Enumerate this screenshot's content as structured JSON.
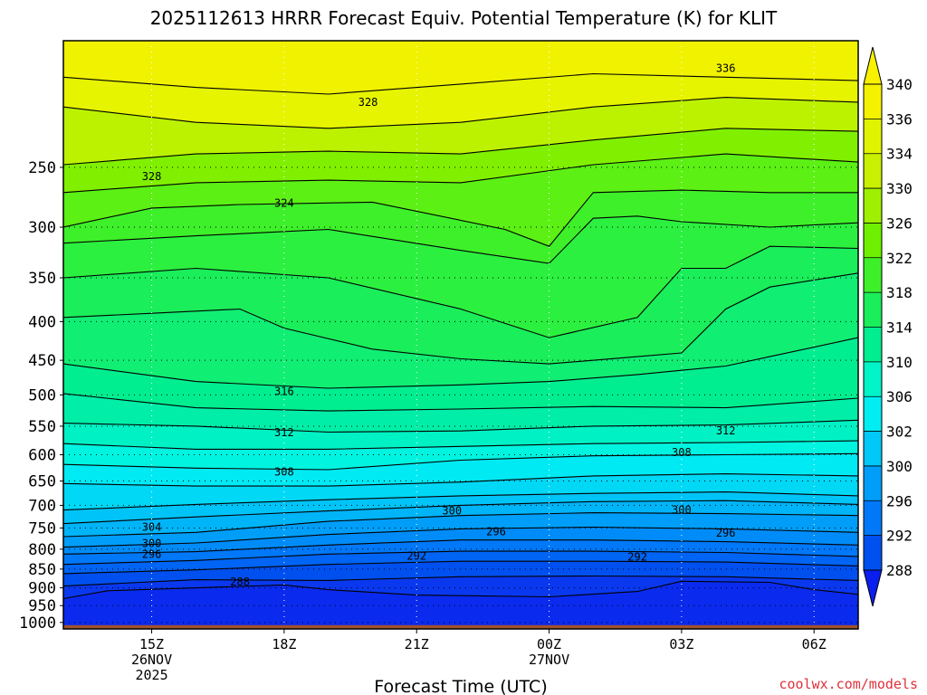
{
  "chart_data": {
    "type": "heatmap",
    "title": "2025112613 HRRR Forecast Equiv. Potential Temperature (K) for KLIT",
    "xlabel": "Forecast Time (UTC)",
    "ylabel": "",
    "credit": "coolwx.com/models",
    "y_axis": {
      "scale": "log",
      "inverted": true,
      "ylim": [
        1020,
        170
      ],
      "ticks": [
        250,
        300,
        350,
        400,
        450,
        500,
        550,
        600,
        650,
        700,
        750,
        800,
        850,
        900,
        950,
        1000
      ],
      "tick_labels": [
        "250",
        "300",
        "350",
        "400",
        "450",
        "500",
        "550",
        "600",
        "650",
        "700",
        "750",
        "800",
        "850",
        "900",
        "950",
        "1000"
      ]
    },
    "x_axis": {
      "xlim": [
        13,
        31
      ],
      "ticks": [
        {
          "hour": 15,
          "lines": [
            "15Z",
            "26NOV",
            "2025"
          ]
        },
        {
          "hour": 18,
          "lines": [
            "18Z"
          ]
        },
        {
          "hour": 21,
          "lines": [
            "21Z"
          ]
        },
        {
          "hour": 24,
          "lines": [
            "00Z",
            "27NOV"
          ]
        },
        {
          "hour": 27,
          "lines": [
            "03Z"
          ]
        },
        {
          "hour": 30,
          "lines": [
            "06Z"
          ]
        }
      ]
    },
    "grid": true,
    "colorbar": {
      "placement": "right",
      "labels": [
        "340",
        "336",
        "334",
        "330",
        "326",
        "322",
        "318",
        "314",
        "310",
        "306",
        "302",
        "300",
        "296",
        "292",
        "288"
      ],
      "colors": [
        "#f5f200",
        "#e0f400",
        "#c8f000",
        "#9ef000",
        "#6ef000",
        "#3ef02a",
        "#1aee5a",
        "#00ee90",
        "#00f4c8",
        "#00eef2",
        "#00c8f8",
        "#009ef8",
        "#0078f8",
        "#0050f0",
        "#0a2aee"
      ],
      "extend_top_color": "#f8f200",
      "extend_bottom_color": "#0a1ef0"
    },
    "contour_labels": [
      {
        "text": "336",
        "hour": 28.0,
        "p": 185
      },
      {
        "text": "328",
        "hour": 19.9,
        "p": 205
      },
      {
        "text": "328",
        "hour": 15.0,
        "p": 257
      },
      {
        "text": "324",
        "hour": 18.0,
        "p": 279
      },
      {
        "text": "316",
        "hour": 18.0,
        "p": 495
      },
      {
        "text": "312",
        "hour": 18.0,
        "p": 561
      },
      {
        "text": "312",
        "hour": 28.0,
        "p": 558
      },
      {
        "text": "308",
        "hour": 27.0,
        "p": 596
      },
      {
        "text": "308",
        "hour": 18.0,
        "p": 632
      },
      {
        "text": "304",
        "hour": 15.0,
        "p": 748
      },
      {
        "text": "300",
        "hour": 15.0,
        "p": 786
      },
      {
        "text": "296",
        "hour": 15.0,
        "p": 812
      },
      {
        "text": "300",
        "hour": 21.8,
        "p": 712
      },
      {
        "text": "300",
        "hour": 27.0,
        "p": 710
      },
      {
        "text": "296",
        "hour": 22.8,
        "p": 758
      },
      {
        "text": "296",
        "hour": 28.0,
        "p": 762
      },
      {
        "text": "292",
        "hour": 21.0,
        "p": 817
      },
      {
        "text": "292",
        "hour": 26.0,
        "p": 819
      },
      {
        "text": "288",
        "hour": 17.0,
        "p": 884
      }
    ],
    "bands": [
      {
        "value": 336,
        "levels": [
          [
            13,
            190
          ],
          [
            16,
            196
          ],
          [
            19,
            200
          ],
          [
            22,
            194
          ],
          [
            25,
            188
          ],
          [
            28,
            190
          ],
          [
            31,
            192
          ]
        ]
      },
      {
        "value": 332,
        "levels": [
          [
            13,
            208
          ],
          [
            16,
            218
          ],
          [
            19,
            222
          ],
          [
            22,
            218
          ],
          [
            25,
            208
          ],
          [
            28,
            202
          ],
          [
            31,
            205
          ]
        ]
      },
      {
        "value": 328,
        "levels": [
          [
            13,
            248
          ],
          [
            16,
            240
          ],
          [
            19,
            238
          ],
          [
            22,
            240
          ],
          [
            25,
            230
          ],
          [
            28,
            222
          ],
          [
            31,
            224
          ]
        ]
      },
      {
        "value": 326,
        "levels": [
          [
            13,
            270
          ],
          [
            16,
            262
          ],
          [
            19,
            260
          ],
          [
            22,
            262
          ],
          [
            25,
            248
          ],
          [
            28,
            240
          ],
          [
            31,
            246
          ]
        ]
      },
      {
        "value": 324,
        "levels": [
          [
            13,
            300
          ],
          [
            15,
            283
          ],
          [
            17,
            280
          ],
          [
            20,
            278
          ],
          [
            23,
            302
          ],
          [
            24,
            318
          ],
          [
            25,
            270
          ],
          [
            27,
            268
          ],
          [
            29,
            270
          ],
          [
            31,
            270
          ]
        ]
      },
      {
        "value": 322,
        "levels": [
          [
            13,
            315
          ],
          [
            16,
            308
          ],
          [
            19,
            302
          ],
          [
            22,
            322
          ],
          [
            24,
            335
          ],
          [
            25,
            292
          ],
          [
            26,
            290
          ],
          [
            27,
            295
          ],
          [
            29,
            300
          ],
          [
            31,
            296
          ]
        ]
      },
      {
        "value": 320,
        "levels": [
          [
            13,
            350
          ],
          [
            16,
            340
          ],
          [
            19,
            350
          ],
          [
            22,
            385
          ],
          [
            24,
            420
          ],
          [
            26,
            395
          ],
          [
            27,
            340
          ],
          [
            28,
            340
          ],
          [
            29,
            318
          ],
          [
            31,
            320
          ]
        ]
      },
      {
        "value": 318,
        "levels": [
          [
            13,
            395
          ],
          [
            15,
            390
          ],
          [
            17,
            385
          ],
          [
            18,
            408
          ],
          [
            20,
            435
          ],
          [
            22,
            448
          ],
          [
            24,
            455
          ],
          [
            26,
            445
          ],
          [
            27,
            440
          ],
          [
            28,
            385
          ],
          [
            29,
            360
          ],
          [
            31,
            345
          ]
        ]
      },
      {
        "value": 316,
        "levels": [
          [
            13,
            455
          ],
          [
            16,
            480
          ],
          [
            19,
            490
          ],
          [
            22,
            485
          ],
          [
            24,
            480
          ],
          [
            26,
            470
          ],
          [
            28,
            458
          ],
          [
            29,
            445
          ],
          [
            31,
            420
          ]
        ]
      },
      {
        "value": 314,
        "levels": [
          [
            13,
            498
          ],
          [
            16,
            520
          ],
          [
            19,
            525
          ],
          [
            22,
            522
          ],
          [
            25,
            518
          ],
          [
            28,
            520
          ],
          [
            31,
            505
          ]
        ]
      },
      {
        "value": 312,
        "levels": [
          [
            13,
            545
          ],
          [
            16,
            550
          ],
          [
            19,
            560
          ],
          [
            22,
            558
          ],
          [
            25,
            550
          ],
          [
            28,
            548
          ],
          [
            31,
            540
          ]
        ]
      },
      {
        "value": 310,
        "levels": [
          [
            13,
            580
          ],
          [
            16,
            590
          ],
          [
            19,
            590
          ],
          [
            22,
            585
          ],
          [
            25,
            580
          ],
          [
            28,
            578
          ],
          [
            31,
            575
          ]
        ]
      },
      {
        "value": 308,
        "levels": [
          [
            13,
            618
          ],
          [
            16,
            625
          ],
          [
            19,
            628
          ],
          [
            22,
            610
          ],
          [
            25,
            602
          ],
          [
            28,
            600
          ],
          [
            31,
            598
          ]
        ]
      },
      {
        "value": 306,
        "levels": [
          [
            13,
            655
          ],
          [
            16,
            660
          ],
          [
            19,
            660
          ],
          [
            22,
            652
          ],
          [
            25,
            640
          ],
          [
            28,
            636
          ],
          [
            31,
            640
          ]
        ]
      },
      {
        "value": 304,
        "levels": [
          [
            13,
            710
          ],
          [
            16,
            698
          ],
          [
            19,
            688
          ],
          [
            22,
            680
          ],
          [
            25,
            675
          ],
          [
            28,
            672
          ],
          [
            31,
            680
          ]
        ]
      },
      {
        "value": 302,
        "levels": [
          [
            13,
            740
          ],
          [
            16,
            725
          ],
          [
            19,
            712
          ],
          [
            22,
            700
          ],
          [
            25,
            692
          ],
          [
            28,
            690
          ],
          [
            31,
            698
          ]
        ]
      },
      {
        "value": 300,
        "levels": [
          [
            13,
            770
          ],
          [
            16,
            760
          ],
          [
            19,
            735
          ],
          [
            22,
            722
          ],
          [
            25,
            716
          ],
          [
            28,
            718
          ],
          [
            31,
            722
          ]
        ]
      },
      {
        "value": 298,
        "levels": [
          [
            13,
            795
          ],
          [
            16,
            785
          ],
          [
            19,
            765
          ],
          [
            22,
            752
          ],
          [
            25,
            748
          ],
          [
            28,
            752
          ],
          [
            31,
            760
          ]
        ]
      },
      {
        "value": 296,
        "levels": [
          [
            13,
            812
          ],
          [
            16,
            806
          ],
          [
            19,
            790
          ],
          [
            22,
            778
          ],
          [
            25,
            778
          ],
          [
            28,
            782
          ],
          [
            31,
            790
          ]
        ]
      },
      {
        "value": 294,
        "levels": [
          [
            13,
            838
          ],
          [
            16,
            828
          ],
          [
            19,
            812
          ],
          [
            22,
            805
          ],
          [
            25,
            805
          ],
          [
            28,
            808
          ],
          [
            31,
            818
          ]
        ]
      },
      {
        "value": 292,
        "levels": [
          [
            13,
            862
          ],
          [
            16,
            852
          ],
          [
            19,
            838
          ],
          [
            22,
            830
          ],
          [
            25,
            830
          ],
          [
            28,
            832
          ],
          [
            31,
            842
          ]
        ]
      },
      {
        "value": 290,
        "levels": [
          [
            13,
            895
          ],
          [
            16,
            878
          ],
          [
            19,
            880
          ],
          [
            22,
            870
          ],
          [
            25,
            868
          ],
          [
            28,
            870
          ],
          [
            31,
            880
          ]
        ]
      },
      {
        "value": 288,
        "levels": [
          [
            13,
            930
          ],
          [
            14,
            908
          ],
          [
            16,
            900
          ],
          [
            18,
            892
          ],
          [
            19,
            905
          ],
          [
            21,
            920
          ],
          [
            24,
            925
          ],
          [
            26,
            910
          ],
          [
            27,
            882
          ],
          [
            29,
            885
          ],
          [
            30,
            905
          ],
          [
            31,
            918
          ]
        ]
      },
      {
        "value": 286,
        "levels": [
          [
            13,
            1020
          ],
          [
            31,
            1020
          ]
        ]
      }
    ],
    "ground": {
      "p": 1000,
      "color": "#a0522d"
    }
  }
}
